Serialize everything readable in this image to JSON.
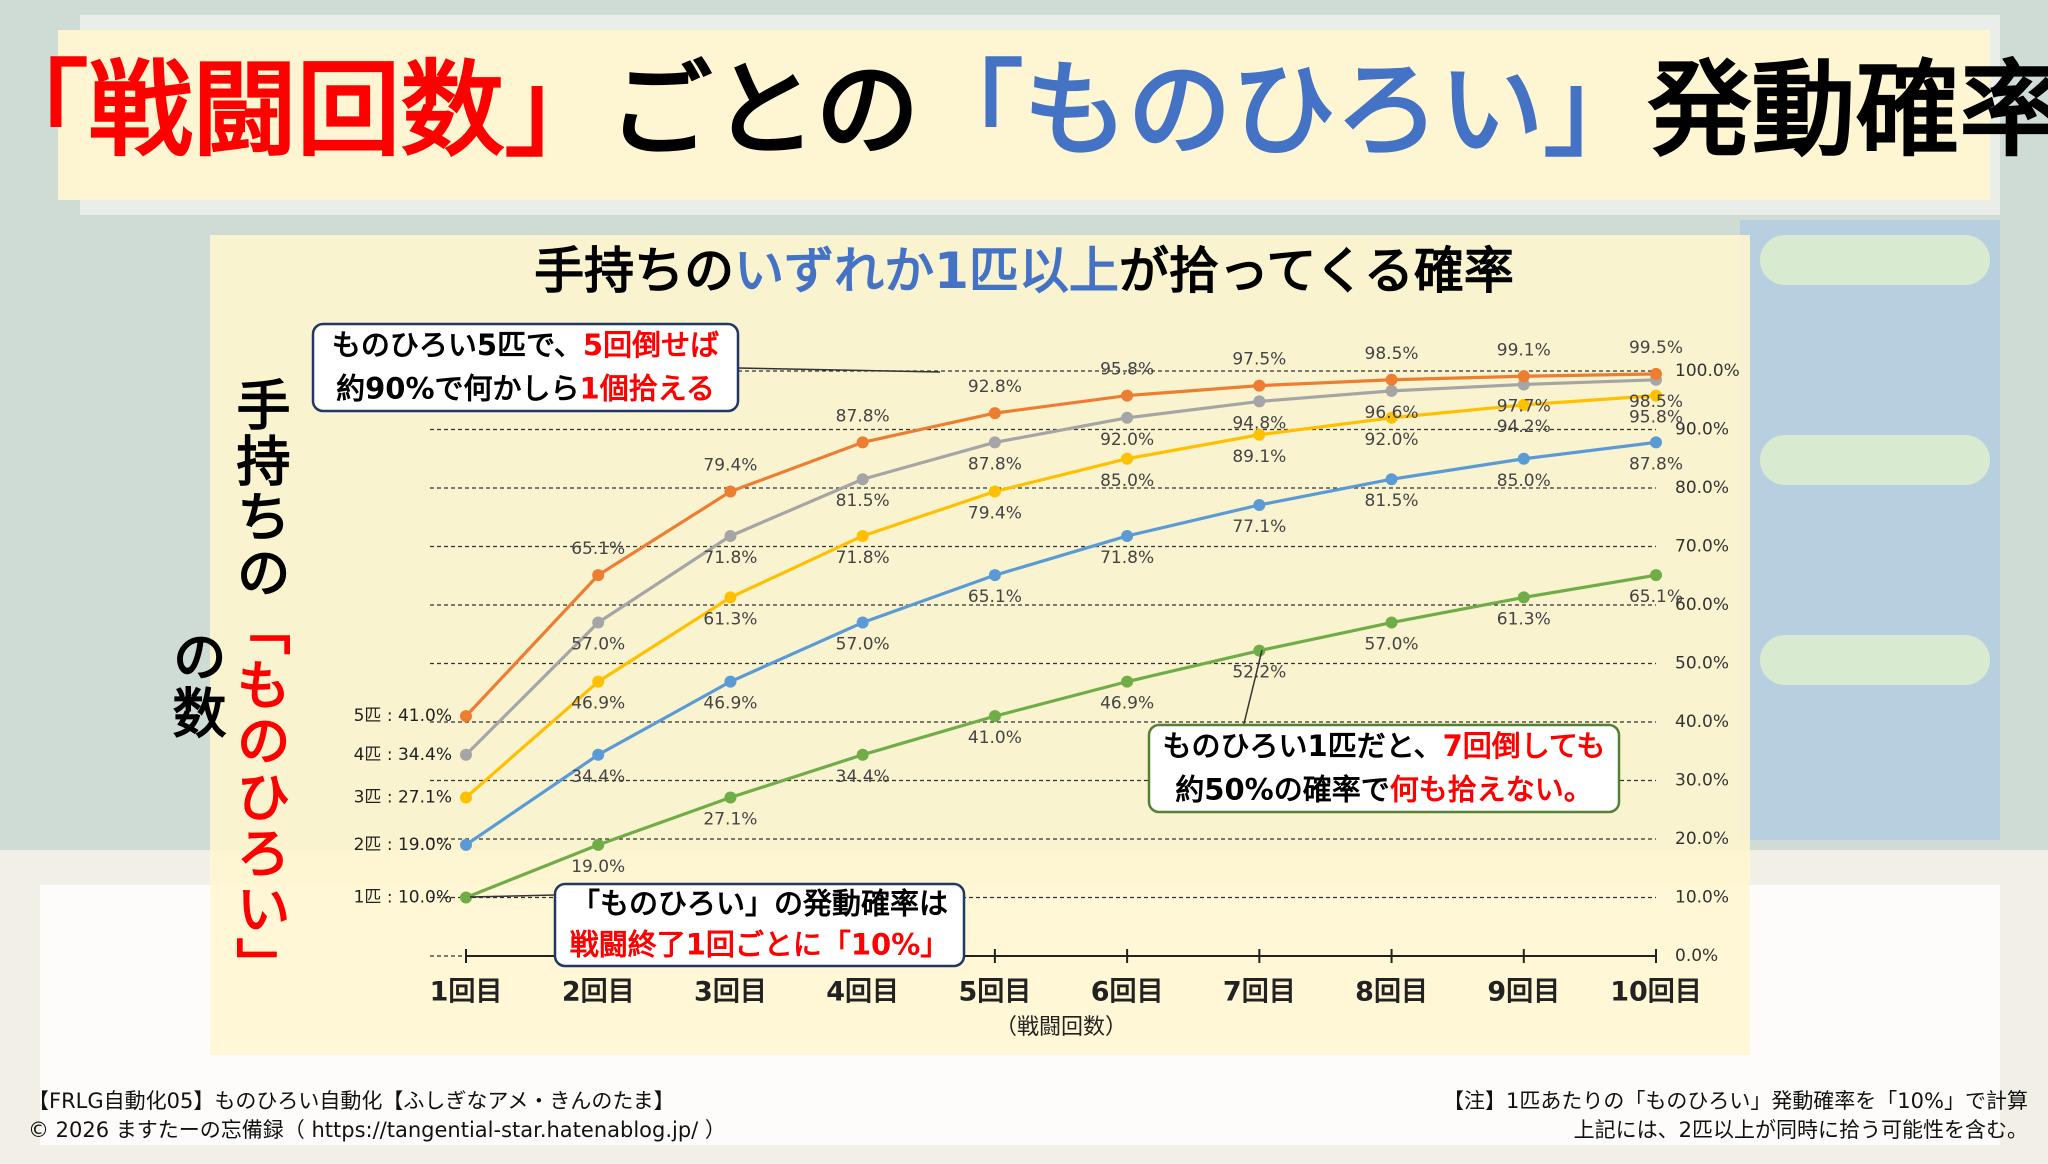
{
  "chart_data": {
    "type": "line",
    "title_parts": [
      {
        "text": "「戦闘回数」",
        "color": "#ff0000"
      },
      {
        "text": "ごとの",
        "color": "#000000"
      },
      {
        "text": "「ものひろい」",
        "color": "#4472c4"
      },
      {
        "text": "発動確率",
        "color": "#000000"
      }
    ],
    "subtitle_parts": [
      {
        "text": "手持ちの",
        "color": "#000000"
      },
      {
        "text": "いずれか1匹以上",
        "color": "#4472c4"
      },
      {
        "text": "が拾ってくる確率",
        "color": "#000000"
      }
    ],
    "y_label_parts": [
      {
        "text": "手持ちの",
        "color": "#000000"
      },
      {
        "text": "「ものひろい」",
        "color": "#ff0000"
      },
      {
        "text": "の数",
        "color": "#000000"
      }
    ],
    "x_label": "（戦闘回数）",
    "categories": [
      "1回目",
      "2回目",
      "3回目",
      "4回目",
      "5回目",
      "6回目",
      "7回目",
      "8回目",
      "9回目",
      "10回目"
    ],
    "label_separator": " : ",
    "series": [
      {
        "name": "1匹",
        "color": "#70ad47",
        "values": [
          10.0,
          19.0,
          27.1,
          34.4,
          41.0,
          46.9,
          52.2,
          57.0,
          61.3,
          65.1
        ],
        "value_labels": [
          "10.0%",
          "19.0%",
          "27.1%",
          "34.4%",
          "41.0%",
          "46.9%",
          "52.2%",
          "57.0%",
          "61.3%",
          "65.1%"
        ]
      },
      {
        "name": "2匹",
        "color": "#5b9bd5",
        "values": [
          19.0,
          34.4,
          46.9,
          57.0,
          65.1,
          71.8,
          77.1,
          81.5,
          85.0,
          87.8
        ],
        "value_labels": [
          "19.0%",
          "34.4%",
          "46.9%",
          "57.0%",
          "65.1%",
          "71.8%",
          "77.1%",
          "81.5%",
          "85.0%",
          "87.8%"
        ]
      },
      {
        "name": "3匹",
        "color": "#ffc000",
        "values": [
          27.1,
          46.9,
          61.3,
          71.8,
          79.4,
          85.0,
          89.1,
          92.0,
          94.2,
          95.8
        ],
        "value_labels": [
          "27.1%",
          "46.9%",
          "61.3%",
          "71.8%",
          "79.4%",
          "85.0%",
          "89.1%",
          "92.0%",
          "94.2%",
          "95.8%"
        ]
      },
      {
        "name": "4匹",
        "color": "#a5a5a5",
        "values": [
          34.4,
          57.0,
          71.8,
          81.5,
          87.8,
          92.0,
          94.8,
          96.6,
          97.7,
          98.5
        ],
        "value_labels": [
          "34.4%",
          "57.0%",
          "71.8%",
          "81.5%",
          "87.8%",
          "92.0%",
          "94.8%",
          "96.6%",
          "97.7%",
          "98.5%"
        ]
      },
      {
        "name": "5匹",
        "color": "#ed7d31",
        "values": [
          41.0,
          65.1,
          79.4,
          87.8,
          92.8,
          95.8,
          97.5,
          98.5,
          99.1,
          99.5
        ],
        "value_labels": [
          "41.0%",
          "65.1%",
          "79.4%",
          "87.8%",
          "92.8%",
          "95.8%",
          "97.5%",
          "98.5%",
          "99.1%",
          "99.5%"
        ]
      }
    ],
    "ylim": [
      0,
      100
    ],
    "yticks": [
      {
        "value": 0,
        "label": "0.0%"
      },
      {
        "value": 10,
        "label": "10.0%"
      },
      {
        "value": 20,
        "label": "20.0%"
      },
      {
        "value": 30,
        "label": "30.0%"
      },
      {
        "value": 40,
        "label": "40.0%"
      },
      {
        "value": 50,
        "label": "50.0%"
      },
      {
        "value": 60,
        "label": "60.0%"
      },
      {
        "value": 70,
        "label": "70.0%"
      },
      {
        "value": 80,
        "label": "80.0%"
      },
      {
        "value": 90,
        "label": "90.0%"
      },
      {
        "value": 100,
        "label": "100.0%"
      }
    ],
    "grid": true,
    "annotations": [
      {
        "lines": [
          [
            {
              "text": "ものひろい5匹で、",
              "color": "#000000"
            },
            {
              "text": "5回倒せば",
              "color": "#ff0000"
            }
          ],
          [
            {
              "text": "約90%で何かしら",
              "color": "#000000"
            },
            {
              "text": "1個拾える",
              "color": "#ff0000"
            }
          ]
        ]
      },
      {
        "lines": [
          [
            {
              "text": "ものひろい1匹だと、",
              "color": "#000000"
            },
            {
              "text": "7回倒しても",
              "color": "#ff0000"
            }
          ],
          [
            {
              "text": "約50%の確率で",
              "color": "#000000"
            },
            {
              "text": "何も拾えない。",
              "color": "#ff0000"
            }
          ]
        ]
      },
      {
        "lines": [
          [
            {
              "text": "「ものひろい」の発動確率は",
              "color": "#000000"
            }
          ],
          [
            {
              "text": "戦闘終了1回ごとに「10%」",
              "color": "#ff0000"
            }
          ]
        ]
      }
    ]
  },
  "footer": {
    "left": [
      "【FRLG自動化05】ものひろい自動化【ふしぎなアメ・きんのたま】",
      "© 2026 ますたーの忘備録（ https://tangential-star.hatenablog.jp/ ）"
    ],
    "right": [
      "【注】1匹あたりの「ものひろい」発動確率を「10%」で計算",
      "上記には、2匹以上が同時に拾う可能性を含む。"
    ]
  }
}
